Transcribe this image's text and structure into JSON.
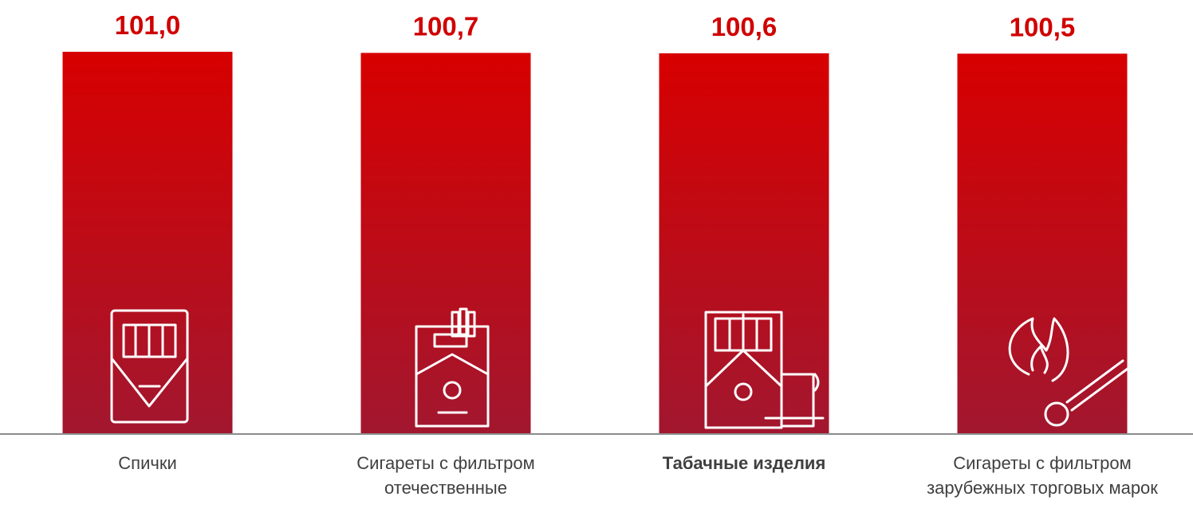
{
  "chart_data": {
    "type": "bar",
    "categories": [
      "Спички",
      "Сигареты с фильтром отечественные",
      "Табачные изделия",
      "Сигареты с фильтром зарубежных торговых марок"
    ],
    "values": [
      101.0,
      100.7,
      100.6,
      100.5
    ],
    "value_labels": [
      "101,0",
      "100,7",
      "100,6",
      "100,5"
    ],
    "colors": [
      "#d70000",
      "#a2172f"
    ]
  }
}
